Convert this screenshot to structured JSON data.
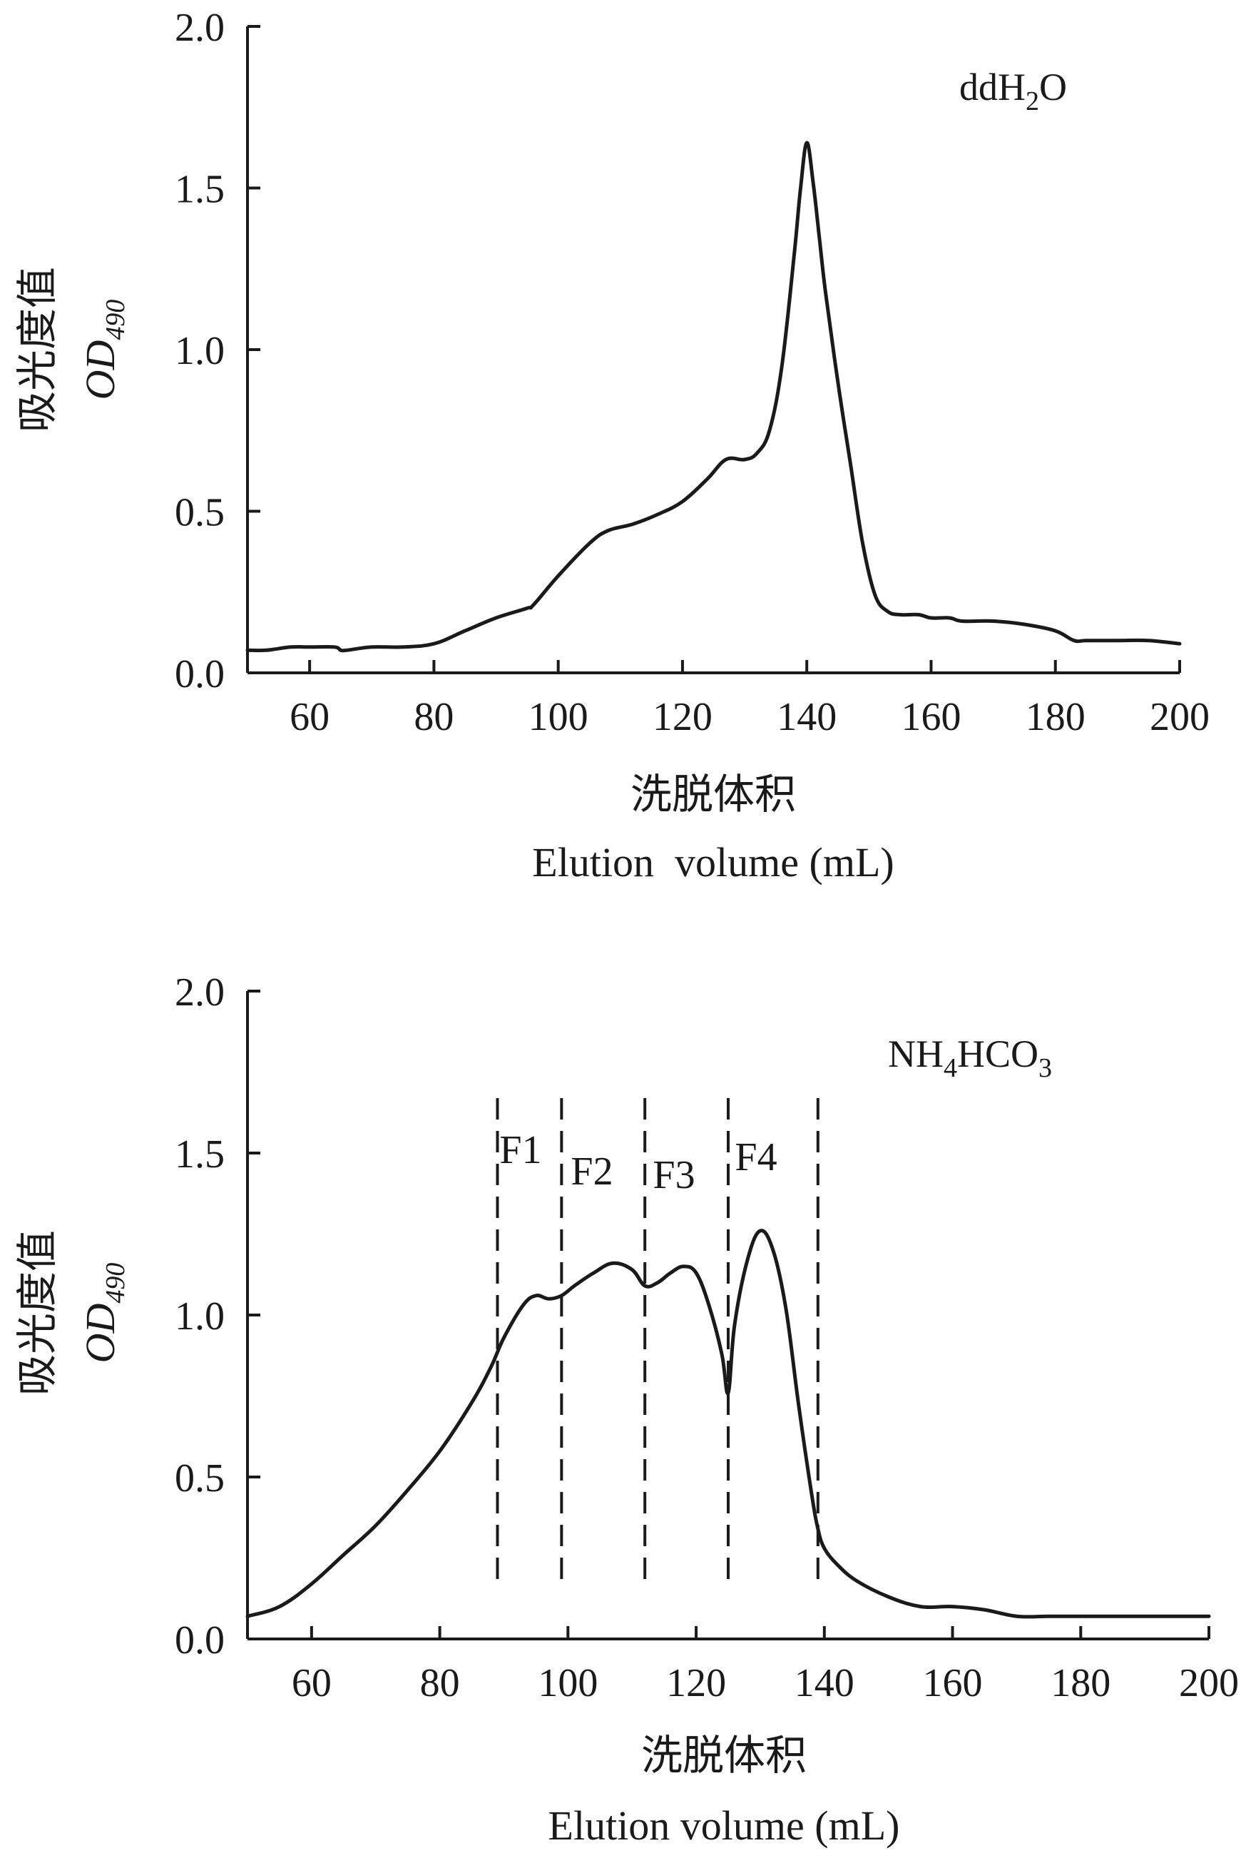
{
  "chart_data": [
    {
      "type": "line",
      "title": "",
      "annotation": {
        "base": "ddH",
        "sub": "2",
        "tail": "O"
      },
      "xlabel": {
        "cn": "洗脱体积",
        "en": "Elution  volume (mL)"
      },
      "ylabel": {
        "cn": "吸光度值",
        "od": "OD",
        "sub": "490"
      },
      "xlim": [
        50,
        200
      ],
      "ylim": [
        0,
        2.0
      ],
      "xticks": [
        60,
        80,
        100,
        120,
        140,
        160,
        180,
        200
      ],
      "xtick_labels": [
        "60",
        "80",
        "100",
        "120",
        "140",
        "160",
        "180",
        "200"
      ],
      "yticks": [
        0,
        0.5,
        1.0,
        1.5,
        2.0
      ],
      "ytick_labels": [
        "0.0",
        "0.5",
        "1.0",
        "1.5",
        "2.0"
      ],
      "series": [
        {
          "name": "ddH2O",
          "x": [
            50,
            53,
            57,
            60,
            64,
            65,
            66,
            70,
            75,
            80,
            85,
            90,
            95,
            96,
            100,
            105,
            108,
            112,
            116,
            120,
            124,
            127,
            130,
            132,
            134,
            136,
            138,
            139,
            140,
            141,
            142,
            143,
            145,
            147,
            149,
            151,
            153,
            155,
            158,
            160,
            163,
            165,
            170,
            175,
            180,
            183,
            185,
            190,
            195,
            200
          ],
          "y": [
            0.07,
            0.07,
            0.08,
            0.08,
            0.08,
            0.07,
            0.07,
            0.08,
            0.08,
            0.09,
            0.13,
            0.17,
            0.2,
            0.21,
            0.3,
            0.4,
            0.44,
            0.46,
            0.49,
            0.53,
            0.6,
            0.66,
            0.66,
            0.68,
            0.75,
            0.95,
            1.3,
            1.5,
            1.64,
            1.52,
            1.35,
            1.18,
            0.9,
            0.65,
            0.4,
            0.24,
            0.19,
            0.18,
            0.18,
            0.17,
            0.17,
            0.16,
            0.16,
            0.15,
            0.13,
            0.1,
            0.1,
            0.1,
            0.1,
            0.09
          ]
        }
      ]
    },
    {
      "type": "line",
      "title": "",
      "annotation": {
        "base": "NH",
        "sub": "4",
        "mid": "HCO",
        "sub2": "3"
      },
      "xlabel": {
        "cn": "洗脱体积",
        "en": "Elution volume (mL)"
      },
      "ylabel": {
        "cn": "吸光度值",
        "od": "OD",
        "sub": "490"
      },
      "xlim": [
        50,
        200
      ],
      "ylim": [
        0,
        2.0
      ],
      "xticks": [
        60,
        80,
        100,
        120,
        140,
        160,
        180,
        200
      ],
      "xtick_labels": [
        "60",
        "80",
        "100",
        "120",
        "140",
        "160",
        "180",
        "200"
      ],
      "yticks": [
        0,
        0.5,
        1.0,
        1.5,
        2.0
      ],
      "ytick_labels": [
        "0.0",
        "0.5",
        "1.0",
        "1.5",
        "2.0"
      ],
      "fractions": [
        {
          "label": "F1",
          "x_start": 89,
          "x_end": 99
        },
        {
          "label": "F2",
          "x_start": 99,
          "x_end": 112
        },
        {
          "label": "F3",
          "x_start": 112,
          "x_end": 125
        },
        {
          "label": "F4",
          "x_start": 125,
          "x_end": 139
        }
      ],
      "dividers": [
        89,
        99,
        112,
        125,
        139
      ],
      "series": [
        {
          "name": "NH4HCO3",
          "x": [
            50,
            55,
            60,
            65,
            70,
            75,
            80,
            85,
            88,
            90,
            93,
            95,
            97,
            99,
            101,
            104,
            107,
            110,
            112,
            114,
            116,
            118,
            120,
            122,
            124,
            125,
            126,
            128,
            130,
            132,
            134,
            136,
            138,
            139,
            140,
            142,
            145,
            150,
            155,
            160,
            165,
            170,
            175,
            180,
            185,
            190,
            195,
            200
          ],
          "y": [
            0.07,
            0.1,
            0.17,
            0.26,
            0.35,
            0.46,
            0.58,
            0.73,
            0.84,
            0.93,
            1.03,
            1.06,
            1.05,
            1.06,
            1.09,
            1.13,
            1.16,
            1.14,
            1.09,
            1.1,
            1.13,
            1.15,
            1.13,
            1.03,
            0.88,
            0.76,
            0.97,
            1.17,
            1.26,
            1.2,
            1.02,
            0.72,
            0.45,
            0.34,
            0.28,
            0.23,
            0.18,
            0.13,
            0.1,
            0.1,
            0.09,
            0.07,
            0.07,
            0.07,
            0.07,
            0.07,
            0.07,
            0.07
          ]
        }
      ]
    }
  ]
}
